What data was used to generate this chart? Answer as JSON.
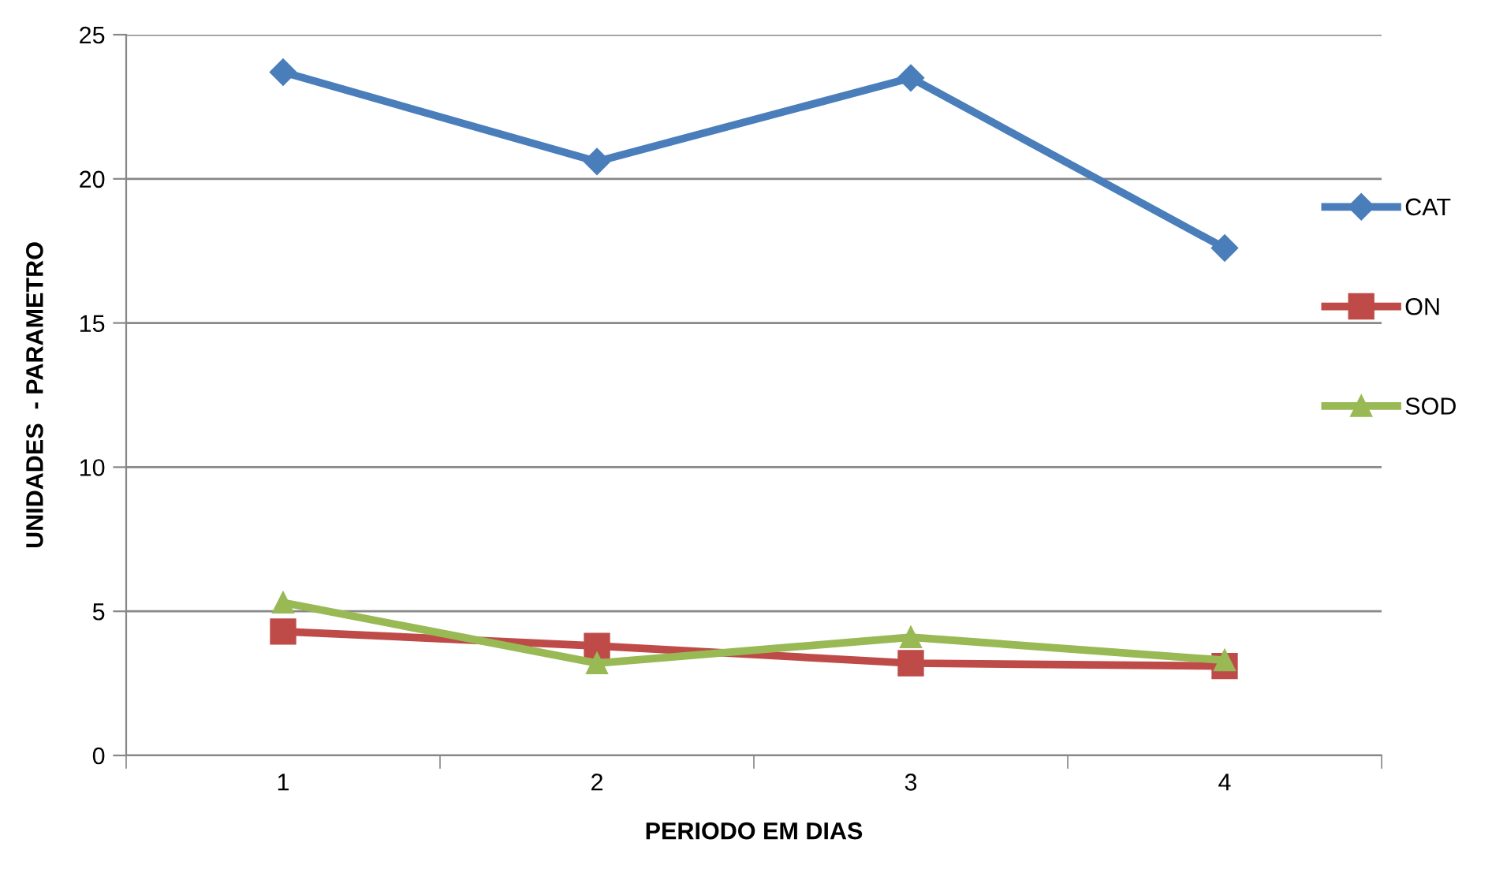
{
  "chart_data": {
    "type": "line",
    "xlabel": "PERIODO EM DIAS",
    "ylabel": "UNIDADES  - PARAMETRO",
    "categories": [
      "1",
      "2",
      "3",
      "4"
    ],
    "series": [
      {
        "name": "CAT",
        "color": "#4a7ebb",
        "marker": "diamond",
        "values": [
          23.7,
          20.6,
          23.5,
          17.6
        ]
      },
      {
        "name": "ON",
        "color": "#be4b48",
        "marker": "square",
        "values": [
          4.3,
          3.8,
          3.2,
          3.1
        ]
      },
      {
        "name": "SOD",
        "color": "#98b954",
        "marker": "triangle",
        "values": [
          5.3,
          3.2,
          4.1,
          3.3
        ]
      }
    ],
    "ylim": [
      0,
      25
    ],
    "yticks": [
      0,
      5,
      10,
      15,
      20,
      25
    ],
    "grid": "y",
    "legend": "right"
  }
}
